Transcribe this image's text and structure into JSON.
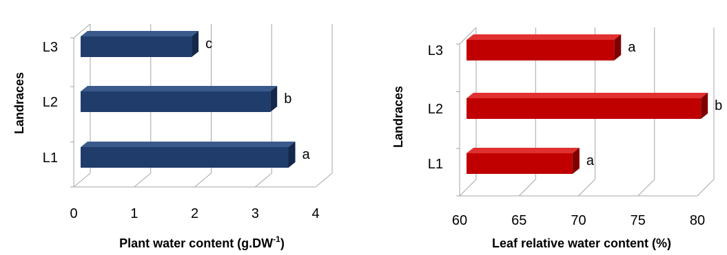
{
  "chart_data": [
    {
      "type": "bar",
      "orientation": "horizontal",
      "style": "3d",
      "categories": [
        "L1",
        "L2",
        "L3"
      ],
      "values": [
        3.55,
        3.25,
        1.95
      ],
      "data_labels": [
        "a",
        "b",
        "c"
      ],
      "xlabel_main": "Plant water content (g.DW",
      "xlabel_sup": "-1",
      "xlabel_end": ")",
      "ylabel": "Landraces",
      "xlim": [
        0,
        4
      ],
      "xticks": [
        "0",
        "1",
        "2",
        "3",
        "4"
      ],
      "grid": true,
      "bar_color": "#1f3c6b",
      "bar_top_color": "#3a5a8c",
      "bar_side_color": "#13284a"
    },
    {
      "type": "bar",
      "orientation": "horizontal",
      "style": "3d",
      "categories": [
        "L1",
        "L2",
        "L3"
      ],
      "values": [
        69.5,
        80.3,
        73
      ],
      "data_labels": [
        "a",
        "b",
        "a"
      ],
      "xlabel": "Leaf relative water content (%)",
      "ylabel": "Landraces",
      "xlim": [
        60,
        80
      ],
      "xticks": [
        "60",
        "65",
        "70",
        "75",
        "80"
      ],
      "grid": true,
      "bar_color": "#c00000",
      "bar_top_color": "#e03030",
      "bar_side_color": "#800000"
    }
  ]
}
